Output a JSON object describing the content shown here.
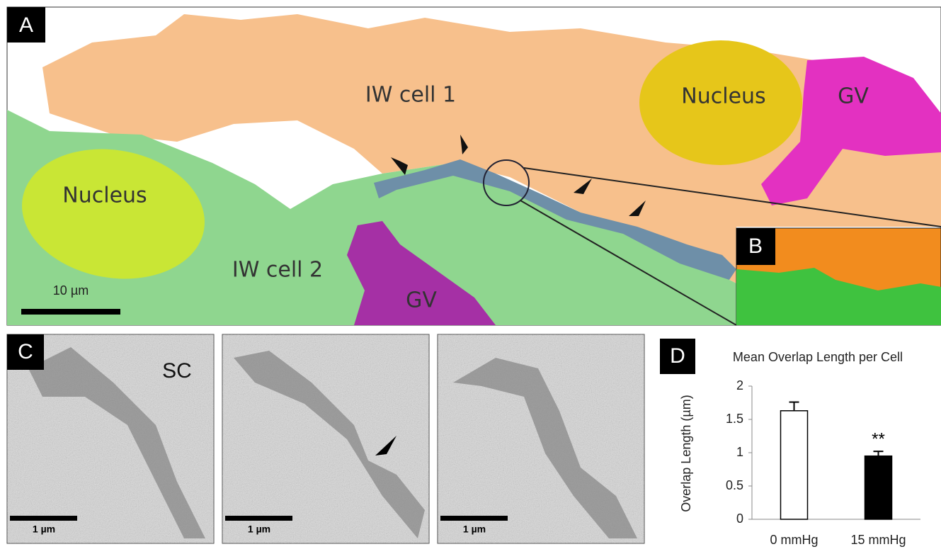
{
  "panel_a": {
    "label": "A",
    "cell1": "IW cell 1",
    "nucleus_1": "Nucleus",
    "gv_1": "GV",
    "nucleus_2": "Nucleus",
    "cell2": "IW cell 2",
    "gv_2": "GV",
    "scale_bar": "10 µm"
  },
  "panel_b": {
    "label": "B"
  },
  "panel_c": {
    "label": "C",
    "sc": "SC",
    "scale_bars": [
      "1 µm",
      "1 µm",
      "1 µm"
    ]
  },
  "panel_d": {
    "label": "D"
  },
  "chart_data": {
    "type": "bar",
    "title": "Mean Overlap Length per Cell",
    "y_label": "Overlap Length (µm)",
    "categories": [
      "0 mmHg",
      "15 mmHg"
    ],
    "values": [
      1.63,
      0.95
    ],
    "errors": [
      0.13,
      0.07
    ],
    "colors": [
      "#ffffff",
      "#000000"
    ],
    "annotation": "**",
    "ylim": [
      0,
      2
    ],
    "yticks": [
      0,
      0.5,
      1,
      1.5,
      2
    ]
  }
}
